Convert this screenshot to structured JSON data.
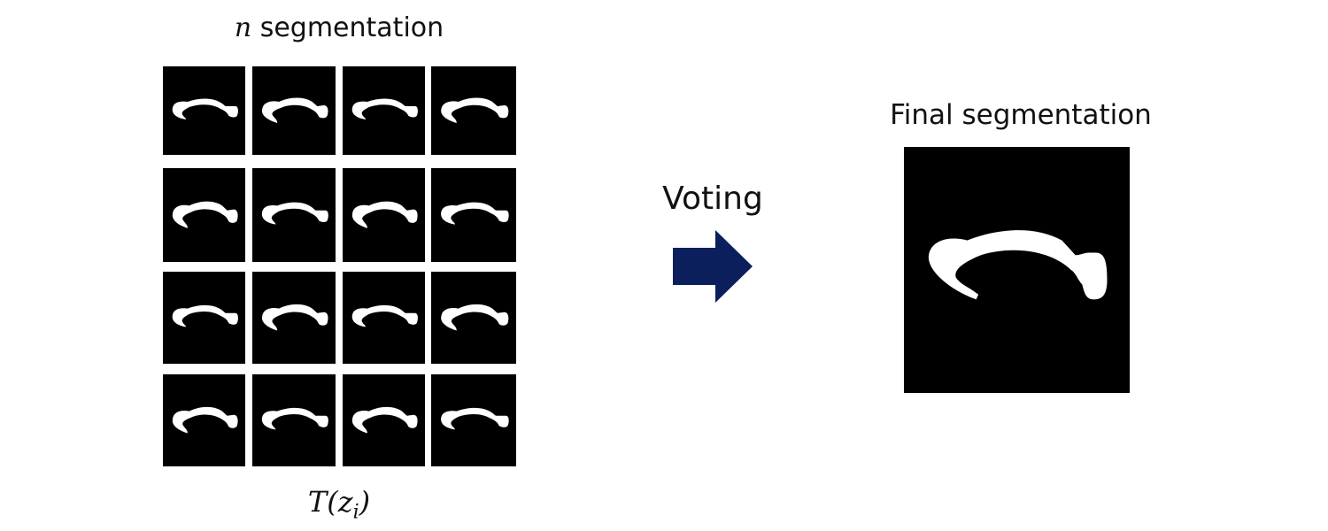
{
  "grid": {
    "title_var": "n",
    "title_text": " segmentation",
    "label_func": "T(z",
    "label_sub": "i",
    "label_close": ")",
    "rows": 4,
    "cols": 4
  },
  "voting": {
    "label": "Voting",
    "arrow_color": "#0b1f5c"
  },
  "final": {
    "title": "Final segmentation"
  },
  "colors": {
    "tile_bg": "#000000",
    "mask": "#ffffff"
  }
}
